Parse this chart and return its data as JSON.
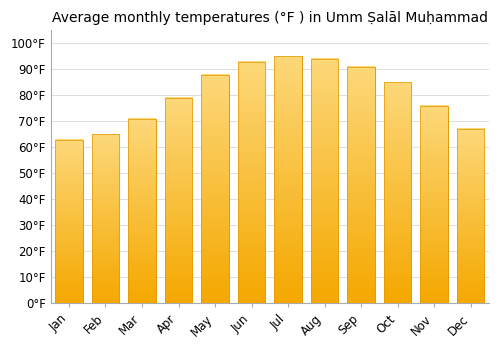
{
  "months": [
    "Jan",
    "Feb",
    "Mar",
    "Apr",
    "May",
    "Jun",
    "Jul",
    "Aug",
    "Sep",
    "Oct",
    "Nov",
    "Dec"
  ],
  "values": [
    63,
    65,
    71,
    79,
    88,
    93,
    95,
    94,
    91,
    85,
    76,
    67
  ],
  "bar_color_top": "#FDD87A",
  "bar_color_bottom": "#F5A800",
  "bar_edge_color": "#E09800",
  "title": "Average monthly temperatures (°F ) in Umm Ṣalāl Muḥammad",
  "ylabel_ticks": [
    "0°F",
    "10°F",
    "20°F",
    "30°F",
    "40°F",
    "50°F",
    "60°F",
    "70°F",
    "80°F",
    "90°F",
    "100°F"
  ],
  "ytick_values": [
    0,
    10,
    20,
    30,
    40,
    50,
    60,
    70,
    80,
    90,
    100
  ],
  "ylim": [
    0,
    105
  ],
  "background_color": "#ffffff",
  "grid_color": "#dddddd",
  "title_fontsize": 10,
  "tick_fontsize": 8.5
}
